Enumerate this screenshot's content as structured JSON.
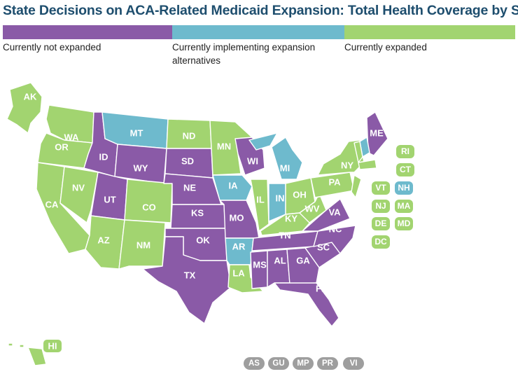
{
  "title": "State Decisions on ACA-Related Medicaid Expansion: Total Health Coverage by State",
  "colors": {
    "not_expanded": "#8a5aa7",
    "alternatives": "#6ebacd",
    "expanded": "#a2d470",
    "territory": "#9e9e9e"
  },
  "legend": {
    "not_expanded": "Currently not expanded",
    "alternatives": "Currently implementing expansion alternatives",
    "expanded": "Currently expanded"
  },
  "states": {
    "AK": {
      "label": "AK",
      "status": "expanded"
    },
    "HI": {
      "label": "HI",
      "status": "expanded"
    },
    "WA": {
      "label": "WA",
      "status": "expanded"
    },
    "OR": {
      "label": "OR",
      "status": "expanded"
    },
    "CA": {
      "label": "CA",
      "status": "expanded"
    },
    "NV": {
      "label": "NV",
      "status": "expanded"
    },
    "ID": {
      "label": "ID",
      "status": "not_expanded"
    },
    "MT": {
      "label": "MT",
      "status": "alternatives"
    },
    "WY": {
      "label": "WY",
      "status": "not_expanded"
    },
    "UT": {
      "label": "UT",
      "status": "not_expanded"
    },
    "AZ": {
      "label": "AZ",
      "status": "expanded"
    },
    "CO": {
      "label": "CO",
      "status": "expanded"
    },
    "NM": {
      "label": "NM",
      "status": "expanded"
    },
    "ND": {
      "label": "ND",
      "status": "expanded"
    },
    "SD": {
      "label": "SD",
      "status": "not_expanded"
    },
    "NE": {
      "label": "NE",
      "status": "not_expanded"
    },
    "KS": {
      "label": "KS",
      "status": "not_expanded"
    },
    "OK": {
      "label": "OK",
      "status": "not_expanded"
    },
    "TX": {
      "label": "TX",
      "status": "not_expanded"
    },
    "MN": {
      "label": "MN",
      "status": "expanded"
    },
    "IA": {
      "label": "IA",
      "status": "alternatives"
    },
    "MO": {
      "label": "MO",
      "status": "not_expanded"
    },
    "AR": {
      "label": "AR",
      "status": "alternatives"
    },
    "LA": {
      "label": "LA",
      "status": "expanded"
    },
    "WI": {
      "label": "WI",
      "status": "not_expanded"
    },
    "IL": {
      "label": "IL",
      "status": "expanded"
    },
    "MI": {
      "label": "MI",
      "status": "alternatives"
    },
    "IN": {
      "label": "IN",
      "status": "alternatives"
    },
    "OH": {
      "label": "OH",
      "status": "expanded"
    },
    "KY": {
      "label": "KY",
      "status": "expanded"
    },
    "TN": {
      "label": "TN",
      "status": "not_expanded"
    },
    "MS": {
      "label": "MS",
      "status": "not_expanded"
    },
    "AL": {
      "label": "AL",
      "status": "not_expanded"
    },
    "GA": {
      "label": "GA",
      "status": "not_expanded"
    },
    "FL": {
      "label": "FL",
      "status": "not_expanded"
    },
    "SC": {
      "label": "SC",
      "status": "not_expanded"
    },
    "NC": {
      "label": "NC",
      "status": "not_expanded"
    },
    "VA": {
      "label": "VA",
      "status": "not_expanded"
    },
    "WV": {
      "label": "WV",
      "status": "expanded"
    },
    "PA": {
      "label": "PA",
      "status": "expanded"
    },
    "NY": {
      "label": "NY",
      "status": "expanded"
    },
    "ME": {
      "label": "ME",
      "status": "not_expanded"
    },
    "RI": {
      "label": "RI",
      "status": "expanded"
    },
    "CT": {
      "label": "CT",
      "status": "expanded"
    },
    "VT": {
      "label": "VT",
      "status": "expanded"
    },
    "NH": {
      "label": "NH",
      "status": "alternatives"
    },
    "NJ": {
      "label": "NJ",
      "status": "expanded"
    },
    "MA": {
      "label": "MA",
      "status": "expanded"
    },
    "DE": {
      "label": "DE",
      "status": "expanded"
    },
    "MD": {
      "label": "MD",
      "status": "expanded"
    },
    "DC": {
      "label": "DC",
      "status": "expanded"
    }
  },
  "territories": [
    "AS",
    "GU",
    "MP",
    "PR",
    "VI"
  ]
}
